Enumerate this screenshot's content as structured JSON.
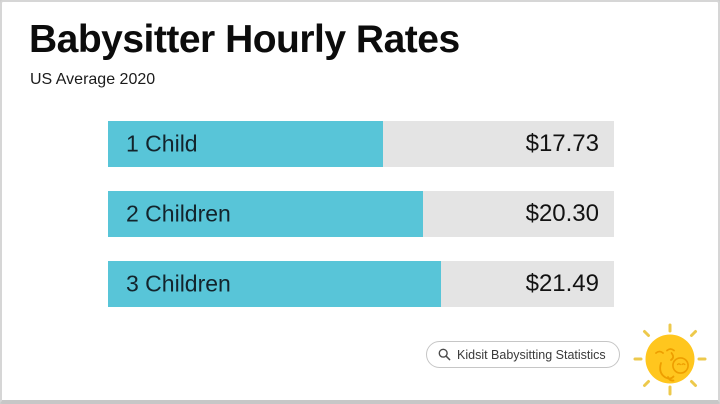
{
  "page": {
    "title": "Babysitter Hourly Rates",
    "subtitle": "US Average 2020"
  },
  "chart_data": {
    "type": "bar",
    "orientation": "horizontal",
    "title": "Babysitter Hourly Rates",
    "subtitle": "US Average 2020",
    "categories": [
      "1 Child",
      "2 Children",
      "3 Children"
    ],
    "values": [
      17.73,
      20.3,
      21.49
    ],
    "value_labels": [
      "$17.73",
      "$20.30",
      "$21.49"
    ],
    "xlim": [
      0,
      32.6
    ],
    "grid": false,
    "legend": false,
    "bar_color": "#58c5d8",
    "track_color": "#e4e4e4",
    "label_position": "inside-left",
    "value_position": "track-right"
  },
  "source_badge": {
    "label": "Kidsit Babysitting Statistics",
    "icon": "search-icon"
  },
  "logo": {
    "name": "kidsit-sun-logo",
    "primary_color": "#ffc61e",
    "ray_color": "#edc94c",
    "line_color": "#ee9e00"
  }
}
